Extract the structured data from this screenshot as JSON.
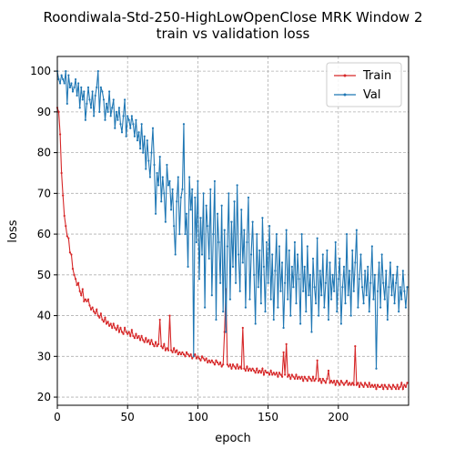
{
  "chart_data": {
    "type": "line",
    "title": "Roondiwala-Std-250-HighLowOpenClose MRK Window 2",
    "subtitle": "train vs validation loss",
    "x_label": "epoch",
    "y_label": "loss",
    "xlim": [
      0,
      250
    ],
    "ylim": [
      18,
      103.6
    ],
    "xticks": [
      0,
      50,
      100,
      150,
      200
    ],
    "yticks": [
      20,
      30,
      40,
      50,
      60,
      70,
      80,
      90,
      100
    ],
    "grid": true,
    "legend": "upper right",
    "x": [
      0,
      1,
      2,
      3,
      4,
      5,
      6,
      7,
      8,
      9,
      10,
      11,
      12,
      13,
      14,
      15,
      16,
      17,
      18,
      19,
      20,
      21,
      22,
      23,
      24,
      25,
      26,
      27,
      28,
      29,
      30,
      31,
      32,
      33,
      34,
      35,
      36,
      37,
      38,
      39,
      40,
      41,
      42,
      43,
      44,
      45,
      46,
      47,
      48,
      49,
      50,
      51,
      52,
      53,
      54,
      55,
      56,
      57,
      58,
      59,
      60,
      61,
      62,
      63,
      64,
      65,
      66,
      67,
      68,
      69,
      70,
      71,
      72,
      73,
      74,
      75,
      76,
      77,
      78,
      79,
      80,
      81,
      82,
      83,
      84,
      85,
      86,
      87,
      88,
      89,
      90,
      91,
      92,
      93,
      94,
      95,
      96,
      97,
      98,
      99,
      100,
      101,
      102,
      103,
      104,
      105,
      106,
      107,
      108,
      109,
      110,
      111,
      112,
      113,
      114,
      115,
      116,
      117,
      118,
      119,
      120,
      121,
      122,
      123,
      124,
      125,
      126,
      127,
      128,
      129,
      130,
      131,
      132,
      133,
      134,
      135,
      136,
      137,
      138,
      139,
      140,
      141,
      142,
      143,
      144,
      145,
      146,
      147,
      148,
      149,
      150,
      151,
      152,
      153,
      154,
      155,
      156,
      157,
      158,
      159,
      160,
      161,
      162,
      163,
      164,
      165,
      166,
      167,
      168,
      169,
      170,
      171,
      172,
      173,
      174,
      175,
      176,
      177,
      178,
      179,
      180,
      181,
      182,
      183,
      184,
      185,
      186,
      187,
      188,
      189,
      190,
      191,
      192,
      193,
      194,
      195,
      196,
      197,
      198,
      199,
      200,
      201,
      202,
      203,
      204,
      205,
      206,
      207,
      208,
      209,
      210,
      211,
      212,
      213,
      214,
      215,
      216,
      217,
      218,
      219,
      220,
      221,
      222,
      223,
      224,
      225,
      226,
      227,
      228,
      229,
      230,
      231,
      232,
      233,
      234,
      235,
      236,
      237,
      238,
      239,
      240,
      241,
      242,
      243,
      244,
      245,
      246,
      247,
      248,
      249
    ],
    "series": [
      {
        "name": "Train",
        "color": "#d62728",
        "values": [
          91,
          90,
          84.5,
          75,
          69.5,
          64.5,
          62,
          59.5,
          59,
          55.5,
          55,
          51.5,
          50,
          49,
          47.5,
          48,
          46,
          45,
          46.5,
          43.5,
          44,
          43.5,
          44,
          42.5,
          41.5,
          42,
          41,
          40.5,
          41.5,
          40,
          39.5,
          40.5,
          39,
          38.5,
          39.5,
          38,
          38.5,
          37.5,
          38,
          37,
          38,
          37,
          36.5,
          37.5,
          36,
          37,
          36,
          35.5,
          37,
          36,
          35.5,
          36,
          35,
          36.5,
          35,
          34.5,
          35.5,
          34.5,
          35,
          34,
          35,
          34,
          33.5,
          34.5,
          33.5,
          34,
          33,
          34,
          33,
          32.5,
          33.5,
          32.5,
          33,
          39,
          32.5,
          32,
          33,
          31.5,
          32,
          31.5,
          40,
          31.5,
          31,
          32,
          31,
          31.5,
          30.5,
          31,
          30.5,
          31,
          30.5,
          30,
          31,
          30.5,
          30,
          30.5,
          29.5,
          30,
          30.5,
          29.5,
          30,
          29.5,
          29,
          30,
          29.5,
          29,
          29.5,
          28.5,
          29,
          28.5,
          29,
          28.5,
          28,
          29,
          28.5,
          28,
          28.5,
          27.5,
          28,
          36,
          46.5,
          28,
          27.5,
          28,
          27,
          28,
          27.5,
          27,
          28,
          27,
          27.5,
          27,
          37,
          27,
          26.5,
          27.5,
          26.5,
          27,
          26.5,
          27,
          26.5,
          26,
          27,
          26,
          26.5,
          26,
          27,
          25.5,
          26.5,
          26,
          26,
          25.5,
          26.5,
          25.5,
          26,
          25.5,
          26,
          25,
          26,
          25.5,
          25,
          31,
          25.5,
          33,
          25,
          25.5,
          24.5,
          25.5,
          25,
          24.5,
          25.5,
          24.5,
          25,
          24.5,
          25,
          24,
          25,
          24.5,
          24,
          25,
          24.5,
          24,
          25,
          24,
          24.5,
          29,
          24,
          24.5,
          23.5,
          24.5,
          24,
          23.5,
          24.5,
          26.5,
          23.5,
          24,
          23.5,
          24,
          23,
          24,
          23.5,
          23,
          24,
          23.5,
          23,
          23.5,
          24,
          23,
          23.5,
          23,
          23.5,
          23,
          32.5,
          23,
          23.5,
          22.5,
          23.5,
          23,
          22.5,
          23.5,
          23,
          22.5,
          23.5,
          22.5,
          23,
          22.5,
          23,
          22,
          23,
          22.5,
          22.5,
          23,
          22,
          23,
          22.5,
          22,
          23,
          22.5,
          22,
          23,
          22.5,
          22,
          23,
          22,
          22.5,
          23.5,
          22,
          23,
          22.5,
          23.5
        ]
      },
      {
        "name": "Val",
        "color": "#1f77b4",
        "values": [
          100,
          98,
          97,
          99,
          98,
          97,
          100,
          92,
          99,
          96,
          97,
          95,
          96,
          98,
          94,
          97,
          91,
          96,
          93,
          95,
          88,
          92,
          96,
          93,
          91,
          95,
          89,
          94,
          96,
          100,
          90,
          96,
          95,
          93,
          88,
          92,
          90,
          95,
          89,
          91,
          93,
          86,
          90,
          88,
          91,
          87,
          85,
          89,
          93,
          84,
          89,
          88,
          86,
          89,
          87,
          84,
          88,
          83,
          85,
          81,
          87,
          80,
          84,
          76,
          83,
          78,
          74,
          80,
          86,
          77,
          65,
          75,
          72,
          79,
          68,
          74,
          70,
          63,
          77,
          72,
          73,
          66,
          71,
          62,
          55,
          68,
          74,
          60,
          69,
          71,
          87,
          60,
          65,
          52,
          74,
          66,
          71,
          30,
          69,
          58,
          73,
          49,
          64,
          55,
          70,
          42,
          67,
          62,
          54,
          71,
          45,
          60,
          73,
          39,
          65,
          58,
          48,
          67,
          41,
          61,
          36,
          57,
          70,
          44,
          63,
          52,
          68,
          48,
          72,
          55,
          46,
          66,
          53,
          61,
          42,
          58,
          69,
          44,
          55,
          63,
          50,
          38,
          60,
          47,
          56,
          43,
          64,
          52,
          41,
          58,
          48,
          62,
          44,
          55,
          39,
          51,
          60,
          42,
          57,
          46,
          53,
          37,
          48,
          61,
          44,
          56,
          40,
          52,
          47,
          58,
          43,
          55,
          49,
          38,
          60,
          46,
          52,
          41,
          57,
          45,
          50,
          36,
          54,
          47,
          43,
          59,
          40,
          51,
          45,
          55,
          42,
          48,
          56,
          39,
          53,
          44,
          50,
          46,
          58,
          41,
          49,
          54,
          38,
          47,
          52,
          43,
          60,
          45,
          51,
          40,
          56,
          46,
          53,
          61,
          42,
          49,
          55,
          47,
          43,
          51,
          45,
          52,
          41,
          48,
          57,
          44,
          50,
          27,
          46,
          53,
          42,
          55,
          48,
          44,
          51,
          39,
          47,
          53,
          45,
          50,
          43,
          48,
          52,
          41,
          47,
          44,
          51,
          46,
          42,
          47
        ]
      }
    ]
  }
}
